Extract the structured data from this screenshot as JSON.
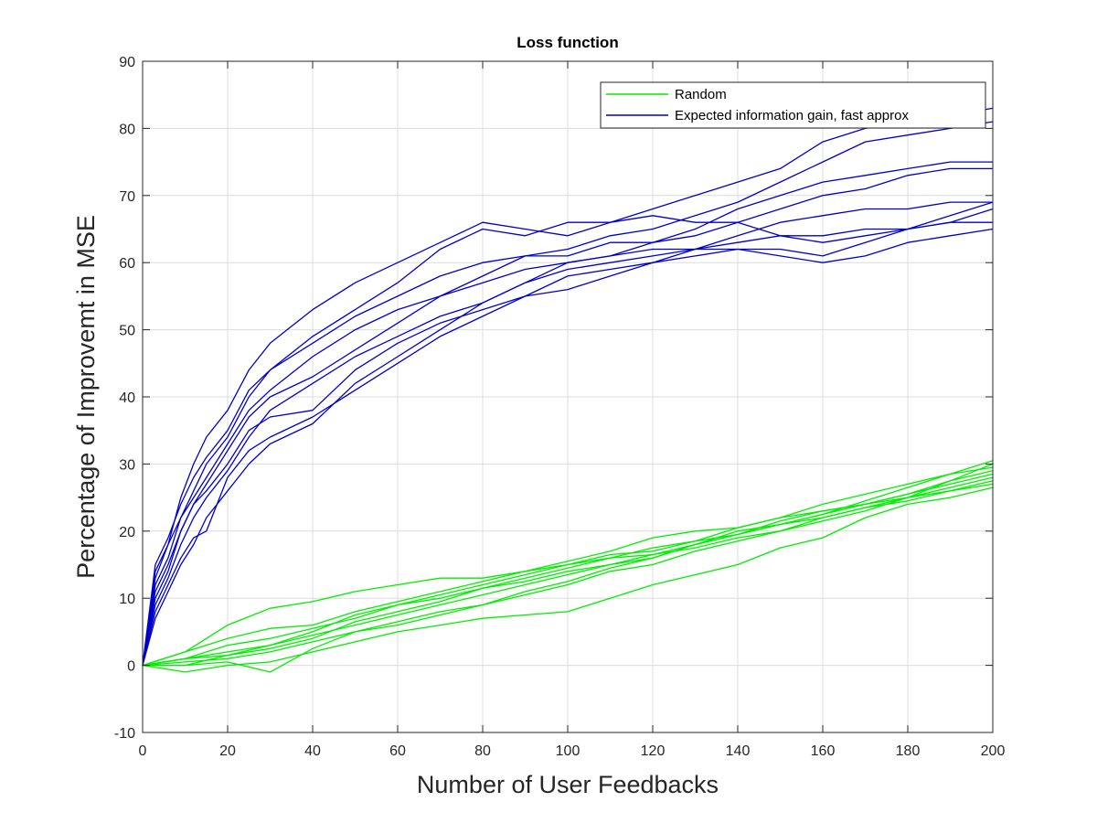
{
  "chart_data": {
    "type": "line",
    "title": "Loss function",
    "xlabel": "Number of User Feedbacks",
    "ylabel": "Percentage of Improvemt in MSE",
    "xlim": [
      0,
      200
    ],
    "ylim": [
      -10,
      90
    ],
    "grid": true,
    "xticks": [
      0,
      20,
      40,
      60,
      80,
      100,
      120,
      140,
      160,
      180,
      200
    ],
    "yticks": [
      -10,
      0,
      10,
      20,
      30,
      40,
      50,
      60,
      70,
      80,
      90
    ],
    "legend": {
      "position": "top-right",
      "entries": [
        {
          "label": "Random",
          "color": "#00ee00"
        },
        {
          "label": "Expected information gain, fast approx",
          "color": "#0000cc"
        }
      ]
    },
    "series": [
      {
        "name": "Random",
        "color": "#00ee00",
        "x": [
          0,
          10,
          20,
          30,
          40,
          50,
          60,
          70,
          80,
          90,
          100,
          110,
          120,
          130,
          140,
          150,
          160,
          170,
          180,
          190,
          200
        ],
        "values": [
          0,
          1.0,
          2.0,
          3.0,
          4.5,
          6.0,
          7.5,
          9.0,
          10.5,
          12.0,
          13.5,
          15.0,
          16.5,
          18.0,
          19.5,
          21.0,
          22.5,
          24.0,
          25.5,
          27.0,
          28.5
        ]
      },
      {
        "name": "Random",
        "color": "#00ee00",
        "x": [
          0,
          10,
          20,
          30,
          40,
          50,
          60,
          70,
          80,
          90,
          100,
          110,
          120,
          130,
          140,
          150,
          160,
          170,
          180,
          190,
          200
        ],
        "values": [
          0,
          0.0,
          0.5,
          -1.0,
          2.5,
          5.0,
          6.5,
          8.0,
          9.0,
          10.5,
          12.0,
          14.0,
          15.0,
          17.0,
          18.5,
          20.0,
          22.0,
          23.5,
          24.5,
          26.0,
          27.0
        ]
      },
      {
        "name": "Random",
        "color": "#00ee00",
        "x": [
          0,
          10,
          20,
          30,
          40,
          50,
          60,
          70,
          80,
          90,
          100,
          110,
          120,
          130,
          140,
          150,
          160,
          170,
          180,
          190,
          200
        ],
        "values": [
          0,
          2.0,
          6.0,
          8.5,
          9.5,
          11.0,
          12.0,
          13.0,
          13.0,
          14.0,
          15.5,
          17.0,
          19.0,
          20.0,
          20.5,
          22.0,
          23.0,
          24.0,
          25.5,
          27.5,
          29.0
        ]
      },
      {
        "name": "Random",
        "color": "#00ee00",
        "x": [
          0,
          10,
          20,
          30,
          40,
          50,
          60,
          70,
          80,
          90,
          100,
          110,
          120,
          130,
          140,
          150,
          160,
          170,
          180,
          190,
          200
        ],
        "values": [
          0,
          -1.0,
          0.0,
          0.5,
          2.0,
          3.5,
          5.0,
          6.0,
          7.0,
          7.5,
          8.0,
          10.0,
          12.0,
          13.5,
          15.0,
          17.5,
          19.0,
          22.0,
          24.0,
          25.0,
          26.5
        ]
      },
      {
        "name": "Random",
        "color": "#00ee00",
        "x": [
          0,
          10,
          20,
          30,
          40,
          50,
          60,
          70,
          80,
          90,
          100,
          110,
          120,
          130,
          140,
          150,
          160,
          170,
          180,
          190,
          200
        ],
        "values": [
          0,
          1.0,
          1.5,
          2.5,
          4.0,
          6.5,
          8.0,
          9.5,
          11.5,
          13.0,
          14.5,
          16.0,
          16.5,
          17.5,
          19.0,
          20.0,
          21.5,
          23.0,
          25.0,
          27.5,
          30.0
        ]
      },
      {
        "name": "Random",
        "color": "#00ee00",
        "x": [
          0,
          10,
          20,
          30,
          40,
          50,
          60,
          70,
          80,
          90,
          100,
          110,
          120,
          130,
          140,
          150,
          160,
          170,
          180,
          190,
          200
        ],
        "values": [
          0,
          2.0,
          4.0,
          5.5,
          6.0,
          8.0,
          9.5,
          11.0,
          12.5,
          14.0,
          15.0,
          16.0,
          17.5,
          18.5,
          19.5,
          21.0,
          22.5,
          24.5,
          26.5,
          28.5,
          30.5
        ]
      },
      {
        "name": "Random",
        "color": "#00ee00",
        "x": [
          0,
          10,
          20,
          30,
          40,
          50,
          60,
          70,
          80,
          90,
          100,
          110,
          120,
          130,
          140,
          150,
          160,
          170,
          180,
          190,
          200
        ],
        "values": [
          0,
          0.5,
          1.0,
          2.0,
          3.5,
          5.0,
          6.0,
          7.5,
          9.0,
          11.0,
          12.5,
          14.5,
          16.0,
          18.0,
          19.5,
          21.5,
          23.0,
          24.0,
          25.0,
          26.0,
          27.5
        ]
      },
      {
        "name": "Random",
        "color": "#00ee00",
        "x": [
          0,
          10,
          20,
          30,
          40,
          50,
          60,
          70,
          80,
          90,
          100,
          110,
          120,
          130,
          140,
          150,
          160,
          170,
          180,
          190,
          200
        ],
        "values": [
          0,
          1.0,
          3.0,
          4.0,
          5.5,
          7.0,
          9.0,
          10.0,
          11.5,
          12.5,
          14.0,
          15.0,
          16.0,
          18.0,
          20.0,
          21.0,
          22.0,
          23.5,
          25.0,
          26.5,
          28.0
        ]
      },
      {
        "name": "Random",
        "color": "#00ee00",
        "x": [
          0,
          10,
          20,
          30,
          40,
          50,
          60,
          70,
          80,
          90,
          100,
          110,
          120,
          130,
          140,
          150,
          160,
          170,
          180,
          190,
          200
        ],
        "values": [
          0,
          0.0,
          1.5,
          3.0,
          5.0,
          7.5,
          9.0,
          10.5,
          12.0,
          13.5,
          15.0,
          16.5,
          17.0,
          18.5,
          20.5,
          22.0,
          24.0,
          25.5,
          27.0,
          28.5,
          29.5
        ]
      },
      {
        "name": "Expected information gain, fast approx",
        "color": "#0000cc",
        "x": [
          0,
          3,
          6,
          9,
          12,
          15,
          20,
          25,
          30,
          40,
          50,
          60,
          70,
          80,
          90,
          100,
          110,
          120,
          130,
          140,
          150,
          160,
          170,
          180,
          190,
          200
        ],
        "values": [
          0,
          12,
          16,
          22,
          25,
          28,
          33,
          38,
          41,
          46,
          50,
          53,
          55,
          57,
          59,
          60,
          61,
          62,
          62,
          63,
          64,
          64,
          65,
          65,
          66,
          68
        ]
      },
      {
        "name": "Expected information gain, fast approx",
        "color": "#0000cc",
        "x": [
          0,
          3,
          6,
          9,
          12,
          15,
          20,
          25,
          30,
          40,
          50,
          60,
          70,
          80,
          90,
          100,
          110,
          120,
          130,
          140,
          150,
          160,
          170,
          180,
          190,
          200
        ],
        "values": [
          0,
          15,
          19,
          24,
          28,
          31,
          35,
          41,
          44,
          49,
          53,
          57,
          62,
          65,
          64,
          66,
          66,
          68,
          70,
          72,
          74,
          78,
          80,
          81,
          82,
          83
        ]
      },
      {
        "name": "Expected information gain, fast approx",
        "color": "#0000cc",
        "x": [
          0,
          3,
          6,
          9,
          12,
          15,
          20,
          25,
          30,
          40,
          50,
          60,
          70,
          80,
          90,
          100,
          110,
          120,
          130,
          140,
          150,
          160,
          170,
          180,
          190,
          200
        ],
        "values": [
          0,
          10,
          14,
          20,
          24,
          27,
          32,
          37,
          40,
          43,
          47,
          51,
          55,
          58,
          61,
          61,
          63,
          63,
          65,
          68,
          70,
          72,
          73,
          74,
          75,
          75
        ]
      },
      {
        "name": "Expected information gain, fast approx",
        "color": "#0000cc",
        "x": [
          0,
          3,
          6,
          9,
          12,
          15,
          20,
          25,
          30,
          40,
          50,
          60,
          70,
          80,
          90,
          100,
          110,
          120,
          130,
          140,
          150,
          160,
          170,
          180,
          190,
          200
        ],
        "values": [
          0,
          9,
          13,
          18,
          22,
          25,
          29,
          34,
          38,
          42,
          46,
          49,
          52,
          54,
          57,
          60,
          61,
          63,
          64,
          66,
          68,
          70,
          71,
          73,
          74,
          74
        ]
      },
      {
        "name": "Expected information gain, fast approx",
        "color": "#0000cc",
        "x": [
          0,
          3,
          6,
          9,
          12,
          15,
          20,
          25,
          30,
          40,
          50,
          60,
          70,
          80,
          90,
          100,
          110,
          120,
          130,
          140,
          150,
          160,
          170,
          180,
          190,
          200
        ],
        "values": [
          0,
          13,
          18,
          25,
          30,
          34,
          38,
          44,
          48,
          53,
          57,
          60,
          63,
          66,
          65,
          64,
          66,
          67,
          66,
          66,
          64,
          63,
          64,
          65,
          66,
          66
        ]
      },
      {
        "name": "Expected information gain, fast approx",
        "color": "#0000cc",
        "x": [
          0,
          3,
          6,
          9,
          12,
          15,
          20,
          25,
          30,
          40,
          50,
          60,
          70,
          80,
          90,
          100,
          110,
          120,
          130,
          140,
          150,
          160,
          170,
          180,
          190,
          200
        ],
        "values": [
          0,
          11,
          15,
          20,
          24,
          26,
          30,
          35,
          37,
          38,
          44,
          48,
          51,
          53,
          55,
          58,
          59,
          60,
          61,
          62,
          62,
          61,
          63,
          65,
          67,
          69
        ]
      },
      {
        "name": "Expected information gain, fast approx",
        "color": "#0000cc",
        "x": [
          0,
          3,
          6,
          9,
          12,
          15,
          20,
          25,
          30,
          40,
          50,
          60,
          70,
          80,
          90,
          100,
          110,
          120,
          130,
          140,
          150,
          160,
          170,
          180,
          190,
          200
        ],
        "values": [
          0,
          8,
          12,
          16,
          19,
          20,
          28,
          32,
          34,
          37,
          41,
          45,
          49,
          52,
          55,
          56,
          58,
          60,
          62,
          64,
          66,
          67,
          68,
          68,
          69,
          69
        ]
      },
      {
        "name": "Expected information gain, fast approx",
        "color": "#0000cc",
        "x": [
          0,
          3,
          6,
          9,
          12,
          15,
          20,
          25,
          30,
          40,
          50,
          60,
          70,
          80,
          90,
          100,
          110,
          120,
          130,
          140,
          150,
          160,
          170,
          180,
          190,
          200
        ],
        "values": [
          0,
          7,
          11,
          15,
          18,
          22,
          26,
          30,
          33,
          36,
          42,
          46,
          50,
          54,
          57,
          59,
          60,
          61,
          62,
          62,
          61,
          60,
          61,
          63,
          64,
          65
        ]
      },
      {
        "name": "Expected information gain, fast approx",
        "color": "#0000cc",
        "x": [
          0,
          3,
          6,
          9,
          12,
          15,
          20,
          25,
          30,
          40,
          50,
          60,
          70,
          80,
          90,
          100,
          110,
          120,
          130,
          140,
          150,
          160,
          170,
          180,
          190,
          200
        ],
        "values": [
          0,
          14,
          18,
          22,
          26,
          30,
          34,
          40,
          44,
          48,
          52,
          55,
          58,
          60,
          61,
          62,
          64,
          65,
          67,
          69,
          72,
          75,
          78,
          79,
          80,
          81
        ]
      }
    ]
  }
}
